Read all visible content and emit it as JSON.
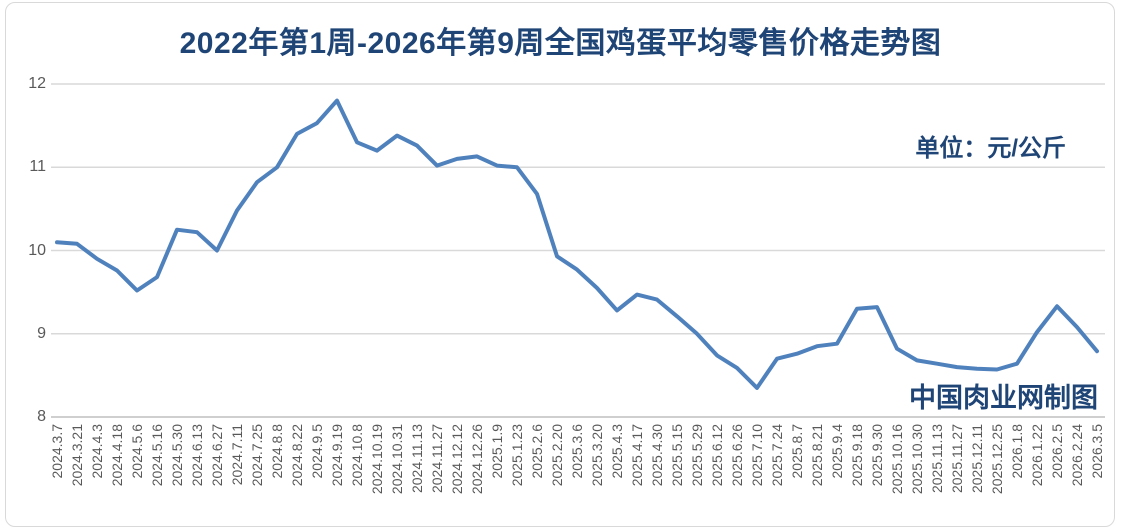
{
  "chart_data": {
    "type": "line",
    "title": "2022年第1周-2026年第9周全国鸡蛋平均零售价格走势图",
    "unit_label": "单位：元/公斤",
    "watermark": "中国肉业网制图",
    "ylim": [
      8,
      12
    ],
    "yticks": [
      12,
      11,
      10,
      9,
      8
    ],
    "grid": "horizontal",
    "legend": "none",
    "line_color": "#4f81bd",
    "grid_color": "#d9d9d9",
    "axis_color": "#bfbfbf",
    "tick_text_color": "#595959",
    "accent_text_color": "#1f4576",
    "categories": [
      "2024.3.7",
      "2024.3.21",
      "2024.4.3",
      "2024.4.18",
      "2024.5.6",
      "2024.5.16",
      "2024.5.30",
      "2024.6.13",
      "2024.6.27",
      "2024.7.11",
      "2024.7.25",
      "2024.8.8",
      "2024.8.22",
      "2024.9.5",
      "2024.9.19",
      "2024.10.8",
      "2024.10.19",
      "2024.10.31",
      "2024.11.13",
      "2024.11.27",
      "2024.12.12",
      "2024.12.26",
      "2025.1.9",
      "2025.1.23",
      "2025.2.6",
      "2025.2.20",
      "2025.3.6",
      "2025.3.20",
      "2025.4.3",
      "2025.4.17",
      "2025.4.30",
      "2025.5.15",
      "2025.5.29",
      "2025.6.12",
      "2025.6.26",
      "2025.7.10",
      "2025.7.24",
      "2025.8.7",
      "2025.8.21",
      "2025.9.4",
      "2025.9.18",
      "2025.9.30",
      "2025.10.16",
      "2025.10.30",
      "2025.11.13",
      "2025.11.27",
      "2025.12.11",
      "2025.12.25",
      "2026.1.8",
      "2026.1.22",
      "2026.2.5",
      "2026.2.24",
      "2026.3.5"
    ],
    "values": [
      10.1,
      10.08,
      9.9,
      9.76,
      9.52,
      9.68,
      10.25,
      10.22,
      10.0,
      10.48,
      10.82,
      11.0,
      11.4,
      11.53,
      11.8,
      11.3,
      11.2,
      11.38,
      11.26,
      11.02,
      11.1,
      11.13,
      11.02,
      11.0,
      10.68,
      9.93,
      9.77,
      9.55,
      9.28,
      9.47,
      9.41,
      9.21,
      9.0,
      8.74,
      8.59,
      8.35,
      8.7,
      8.76,
      8.85,
      8.88,
      9.3,
      9.32,
      8.82,
      8.68,
      8.64,
      8.6,
      8.58,
      8.57,
      8.64,
      9.02,
      9.33,
      9.08,
      8.79
    ]
  }
}
